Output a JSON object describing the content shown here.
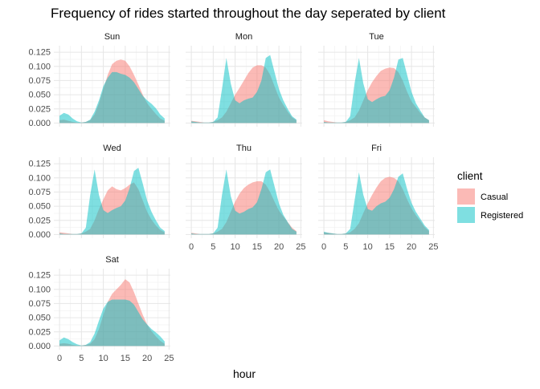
{
  "chart_data": {
    "type": "area",
    "title": "Frequency of rides started throughout the day seperated by client",
    "xlabel": "hour",
    "ylabel": "",
    "xlim": [
      0,
      24
    ],
    "ylim": [
      0,
      0.13
    ],
    "x_ticks": [
      0,
      5,
      10,
      15,
      20,
      25
    ],
    "y_ticks": [
      0.0,
      0.025,
      0.05,
      0.075,
      0.1,
      0.125
    ],
    "y_tick_labels": [
      "0.000",
      "0.025",
      "0.050",
      "0.075",
      "0.100",
      "0.125"
    ],
    "grid": true,
    "legend": {
      "title": "client",
      "position": "right",
      "entries": [
        {
          "name": "Casual",
          "color": "#F8766D"
        },
        {
          "name": "Registered",
          "color": "#00BFC4"
        }
      ]
    },
    "x": [
      0,
      1,
      2,
      3,
      4,
      5,
      6,
      7,
      8,
      9,
      10,
      11,
      12,
      13,
      14,
      15,
      16,
      17,
      18,
      19,
      20,
      21,
      22,
      23,
      24
    ],
    "panels": [
      {
        "label": "Sun",
        "series": [
          {
            "name": "Casual",
            "values": [
              0.005,
              0.006,
              0.004,
              0.002,
              0.001,
              0.001,
              0.002,
              0.005,
              0.015,
              0.035,
              0.06,
              0.085,
              0.104,
              0.11,
              0.112,
              0.11,
              0.1,
              0.085,
              0.068,
              0.05,
              0.035,
              0.025,
              0.016,
              0.008,
              0.004
            ]
          },
          {
            "name": "Registered",
            "values": [
              0.013,
              0.018,
              0.015,
              0.008,
              0.003,
              0.001,
              0.002,
              0.006,
              0.02,
              0.04,
              0.065,
              0.08,
              0.09,
              0.09,
              0.087,
              0.085,
              0.08,
              0.072,
              0.06,
              0.048,
              0.04,
              0.034,
              0.026,
              0.015,
              0.008
            ]
          }
        ]
      },
      {
        "label": "Mon",
        "series": [
          {
            "name": "Casual",
            "values": [
              0.004,
              0.003,
              0.002,
              0.001,
              0.001,
              0.002,
              0.005,
              0.01,
              0.02,
              0.035,
              0.05,
              0.062,
              0.075,
              0.088,
              0.098,
              0.102,
              0.102,
              0.098,
              0.085,
              0.065,
              0.045,
              0.032,
              0.02,
              0.01,
              0.005
            ]
          },
          {
            "name": "Registered",
            "values": [
              0.003,
              0.002,
              0.001,
              0.001,
              0.001,
              0.002,
              0.01,
              0.06,
              0.115,
              0.07,
              0.04,
              0.035,
              0.04,
              0.043,
              0.045,
              0.055,
              0.075,
              0.115,
              0.12,
              0.09,
              0.06,
              0.04,
              0.025,
              0.012,
              0.006
            ]
          }
        ]
      },
      {
        "label": "Tue",
        "series": [
          {
            "name": "Casual",
            "values": [
              0.005,
              0.003,
              0.002,
              0.001,
              0.001,
              0.002,
              0.005,
              0.01,
              0.022,
              0.04,
              0.058,
              0.072,
              0.083,
              0.092,
              0.096,
              0.098,
              0.097,
              0.09,
              0.075,
              0.055,
              0.038,
              0.028,
              0.018,
              0.01,
              0.005
            ]
          },
          {
            "name": "Registered",
            "values": [
              0.002,
              0.001,
              0.001,
              0.001,
              0.001,
              0.002,
              0.012,
              0.07,
              0.115,
              0.07,
              0.042,
              0.037,
              0.042,
              0.046,
              0.048,
              0.058,
              0.08,
              0.112,
              0.115,
              0.085,
              0.055,
              0.035,
              0.022,
              0.01,
              0.005
            ]
          }
        ]
      },
      {
        "label": "Wed",
        "series": [
          {
            "name": "Casual",
            "values": [
              0.004,
              0.003,
              0.002,
              0.001,
              0.001,
              0.002,
              0.005,
              0.01,
              0.025,
              0.045,
              0.062,
              0.078,
              0.085,
              0.08,
              0.078,
              0.082,
              0.088,
              0.092,
              0.08,
              0.06,
              0.04,
              0.026,
              0.016,
              0.008,
              0.004
            ]
          },
          {
            "name": "Registered",
            "values": [
              0.002,
              0.001,
              0.001,
              0.001,
              0.001,
              0.002,
              0.012,
              0.07,
              0.115,
              0.07,
              0.043,
              0.038,
              0.043,
              0.047,
              0.05,
              0.06,
              0.082,
              0.112,
              0.118,
              0.09,
              0.06,
              0.04,
              0.025,
              0.012,
              0.006
            ]
          }
        ]
      },
      {
        "label": "Thu",
        "series": [
          {
            "name": "Casual",
            "values": [
              0.003,
              0.002,
              0.001,
              0.001,
              0.001,
              0.002,
              0.005,
              0.01,
              0.022,
              0.04,
              0.058,
              0.072,
              0.082,
              0.088,
              0.092,
              0.094,
              0.094,
              0.088,
              0.075,
              0.058,
              0.042,
              0.032,
              0.022,
              0.012,
              0.006
            ]
          },
          {
            "name": "Registered",
            "values": [
              0.002,
              0.001,
              0.001,
              0.001,
              0.001,
              0.002,
              0.012,
              0.07,
              0.115,
              0.068,
              0.042,
              0.037,
              0.04,
              0.045,
              0.048,
              0.057,
              0.08,
              0.11,
              0.115,
              0.085,
              0.055,
              0.035,
              0.022,
              0.01,
              0.005
            ]
          }
        ]
      },
      {
        "label": "Fri",
        "series": [
          {
            "name": "Casual",
            "values": [
              0.004,
              0.003,
              0.002,
              0.001,
              0.001,
              0.002,
              0.004,
              0.01,
              0.02,
              0.038,
              0.055,
              0.07,
              0.083,
              0.094,
              0.1,
              0.102,
              0.1,
              0.094,
              0.08,
              0.062,
              0.046,
              0.034,
              0.024,
              0.013,
              0.006
            ]
          },
          {
            "name": "Registered",
            "values": [
              0.005,
              0.003,
              0.002,
              0.001,
              0.001,
              0.002,
              0.01,
              0.06,
              0.11,
              0.07,
              0.045,
              0.042,
              0.05,
              0.055,
              0.058,
              0.065,
              0.08,
              0.102,
              0.108,
              0.08,
              0.056,
              0.04,
              0.028,
              0.016,
              0.008
            ]
          }
        ]
      },
      {
        "label": "Sat",
        "series": [
          {
            "name": "Casual",
            "values": [
              0.004,
              0.005,
              0.004,
              0.002,
              0.001,
              0.001,
              0.002,
              0.004,
              0.012,
              0.03,
              0.055,
              0.078,
              0.092,
              0.1,
              0.108,
              0.118,
              0.112,
              0.095,
              0.075,
              0.055,
              0.038,
              0.026,
              0.017,
              0.009,
              0.004
            ]
          },
          {
            "name": "Registered",
            "values": [
              0.01,
              0.015,
              0.012,
              0.007,
              0.003,
              0.001,
              0.002,
              0.007,
              0.022,
              0.045,
              0.066,
              0.078,
              0.082,
              0.082,
              0.082,
              0.082,
              0.08,
              0.073,
              0.06,
              0.047,
              0.038,
              0.03,
              0.024,
              0.017,
              0.008
            ]
          }
        ]
      }
    ]
  }
}
